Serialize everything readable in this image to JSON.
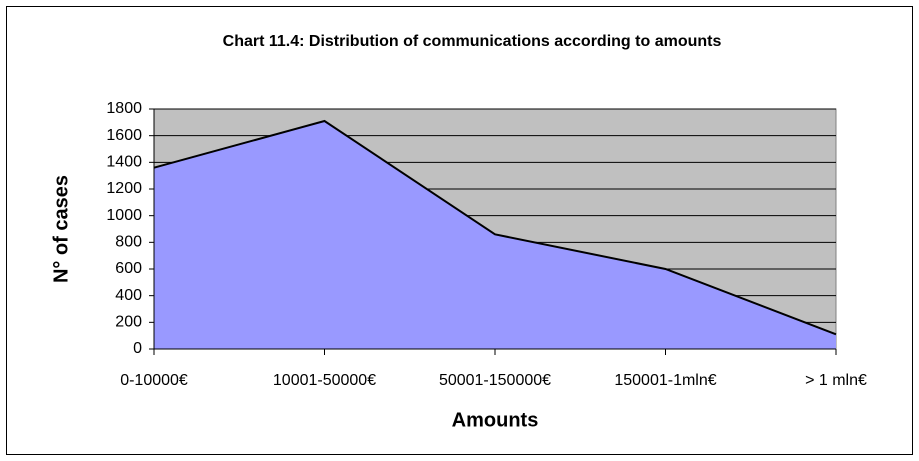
{
  "chart_data": {
    "type": "area",
    "title": "Chart 11.4: Distribution of communications according to amounts",
    "x_label": "Amounts",
    "y_label": "N° of cases",
    "categories": [
      "0-10000€",
      "10001-50000€",
      "50001-150000€",
      "150001-1mln€",
      "> 1 mln€"
    ],
    "values": [
      1360,
      1710,
      860,
      600,
      110
    ],
    "color": "#9999ff",
    "plot_background": "#c0c0c0",
    "ylim": [
      0,
      1800
    ],
    "yticks": [
      0,
      200,
      400,
      600,
      800,
      1000,
      1200,
      1400,
      1600,
      1800
    ],
    "grid": true
  }
}
